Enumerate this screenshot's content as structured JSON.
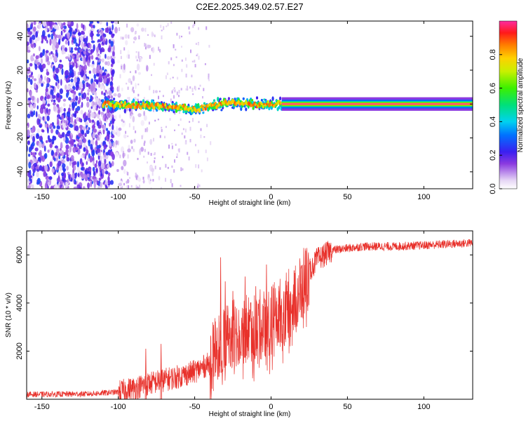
{
  "title": "C2E2.2025.349.02.57.E27",
  "chart_data": [
    {
      "type": "heatmap",
      "name": "spectrogram",
      "xlabel": "Height of straight line (km)",
      "ylabel": "Frequency (Hz)",
      "xlim": [
        -160,
        132
      ],
      "ylim": [
        -50,
        49
      ],
      "xticks": [
        -150,
        -100,
        -50,
        0,
        50,
        100
      ],
      "yticks": [
        -40,
        -20,
        0,
        20,
        40
      ],
      "colorbar": {
        "label": "Normalized spectral amplitude",
        "range": [
          0,
          1
        ],
        "ticks": [
          0.0,
          0.2,
          0.4,
          0.6,
          0.8
        ],
        "tick_labels": [
          "0.0",
          "0.2",
          "0.4",
          "0.6",
          "0.8"
        ]
      },
      "features": {
        "noise_region_x": [
          -160,
          -103
        ],
        "noise_amplitude": 0.2,
        "noisy_ridge_x": [
          -110,
          7
        ],
        "ridge_center_hz": [
          [
            -110,
            0
          ],
          [
            -80,
            -1
          ],
          [
            -60,
            -2
          ],
          [
            -50,
            -3
          ],
          [
            -40,
            -1
          ],
          [
            -30,
            1
          ],
          [
            -10,
            0
          ],
          [
            5,
            0
          ]
        ],
        "clean_tone_x": [
          7,
          132
        ],
        "clean_tone_hz": 0,
        "clean_tone_amplitude": 1.0
      }
    },
    {
      "type": "line",
      "name": "snr",
      "xlabel": "Height of straight line (km)",
      "ylabel": "SNR (10 * v/v)",
      "xlim": [
        -160,
        132
      ],
      "ylim": [
        0,
        7000
      ],
      "xticks": [
        -150,
        -100,
        -50,
        0,
        50,
        100
      ],
      "yticks": [
        2000,
        4000,
        6000
      ],
      "color": "#e8302a",
      "trend": [
        {
          "x": -160,
          "y": 200
        },
        {
          "x": -120,
          "y": 220
        },
        {
          "x": -100,
          "y": 300
        },
        {
          "x": -90,
          "y": 450
        },
        {
          "x": -80,
          "y": 650
        },
        {
          "x": -70,
          "y": 800
        },
        {
          "x": -60,
          "y": 950
        },
        {
          "x": -50,
          "y": 1150
        },
        {
          "x": -40,
          "y": 1500
        },
        {
          "x": -35,
          "y": 2100
        },
        {
          "x": -30,
          "y": 2600
        },
        {
          "x": -20,
          "y": 2900
        },
        {
          "x": -10,
          "y": 3000
        },
        {
          "x": 0,
          "y": 3300
        },
        {
          "x": 10,
          "y": 3800
        },
        {
          "x": 20,
          "y": 4600
        },
        {
          "x": 25,
          "y": 5300
        },
        {
          "x": 30,
          "y": 5800
        },
        {
          "x": 40,
          "y": 6200
        },
        {
          "x": 60,
          "y": 6350
        },
        {
          "x": 80,
          "y": 6350
        },
        {
          "x": 100,
          "y": 6400
        },
        {
          "x": 132,
          "y": 6500
        }
      ],
      "peaks": [
        {
          "x": -33,
          "y": 5900
        },
        {
          "x": -30,
          "y": 4900
        },
        {
          "x": -25,
          "y": 4500
        },
        {
          "x": -17,
          "y": 5100
        },
        {
          "x": -10,
          "y": 4700
        },
        {
          "x": -3,
          "y": 5600
        },
        {
          "x": 5,
          "y": 4500
        },
        {
          "x": 12,
          "y": 4100
        },
        {
          "x": 20,
          "y": 4800
        },
        {
          "x": -82,
          "y": 2100
        },
        {
          "x": -72,
          "y": 2300
        }
      ]
    }
  ]
}
